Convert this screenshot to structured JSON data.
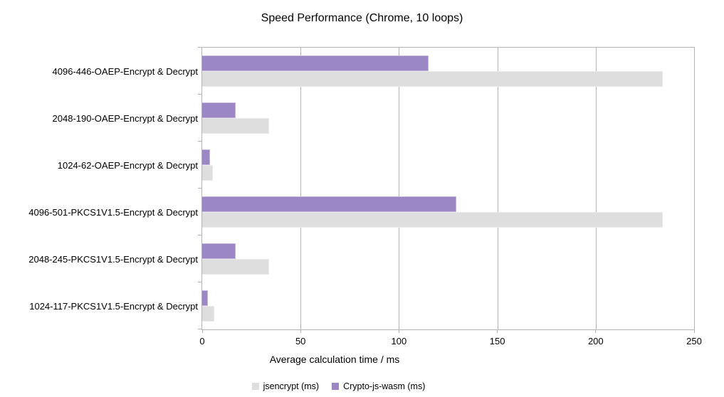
{
  "chart_data": {
    "type": "bar",
    "orientation": "horizontal",
    "title": "Speed Performance (Chrome, 10 loops)",
    "xlabel": "Average calculation time / ms",
    "xlim": [
      0,
      250
    ],
    "xticks": [
      0,
      50,
      100,
      150,
      200,
      250
    ],
    "grid": true,
    "legend_position": "bottom",
    "categories": [
      "4096-446-OAEP-Encrypt & Decrypt",
      "2048-190-OAEP-Encrypt & Decrypt",
      "1024-62-OAEP-Encrypt & Decrypt",
      "4096-501-PKCS1V1.5-Encrypt & Decrypt",
      "2048-245-PKCS1V1.5-Encrypt & Decrypt",
      "1024-117-PKCS1V1.5-Encrypt & Decrypt"
    ],
    "series": [
      {
        "name": "jsencrypt (ms)",
        "color": "#dedede",
        "border_color": "#eaeaea",
        "values": [
          234,
          34,
          5.5,
          234,
          34,
          6
        ]
      },
      {
        "name": "Crypto-js-wasm (ms)",
        "color": "#9b87c3",
        "border_color": "#c3b4dc",
        "values": [
          115,
          17,
          4,
          129,
          17,
          3
        ]
      }
    ]
  },
  "colors": {
    "background": "#ffffff",
    "axis": "#b3b3b3",
    "text": "#000000"
  }
}
